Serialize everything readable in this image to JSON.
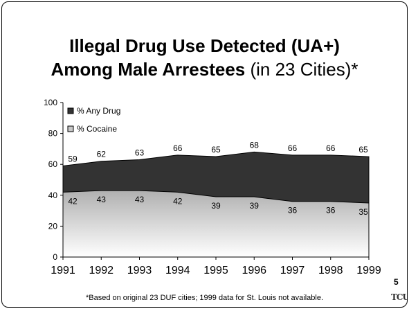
{
  "title": {
    "line1": "Illegal Drug Use Detected (UA+)",
    "line2_bold": "Among Male Arrestees",
    "line2_rest": " (in 23 Cities)*"
  },
  "chart_data": {
    "type": "area",
    "x": [
      1991,
      1992,
      1993,
      1994,
      1995,
      1996,
      1997,
      1998,
      1999
    ],
    "series": [
      {
        "name": "% Any Drug",
        "values": [
          59,
          62,
          63,
          66,
          65,
          68,
          66,
          66,
          65
        ],
        "color": "#333333"
      },
      {
        "name": "% Cocaine",
        "values": [
          42,
          43,
          43,
          42,
          39,
          39,
          36,
          36,
          35
        ],
        "color": "#bdbdbd"
      }
    ],
    "ylim": [
      0,
      100
    ],
    "yticks": [
      0,
      20,
      40,
      60,
      80,
      100
    ],
    "xlabel": "",
    "ylabel": "",
    "legend_position": "top-left",
    "grid": false
  },
  "page_number": "5",
  "footnote": "*Based on original 23 DUF cities; 1999 data for St. Louis not available.",
  "logo": {
    "text": "TCU",
    "icon": "tcu-logo-icon"
  }
}
